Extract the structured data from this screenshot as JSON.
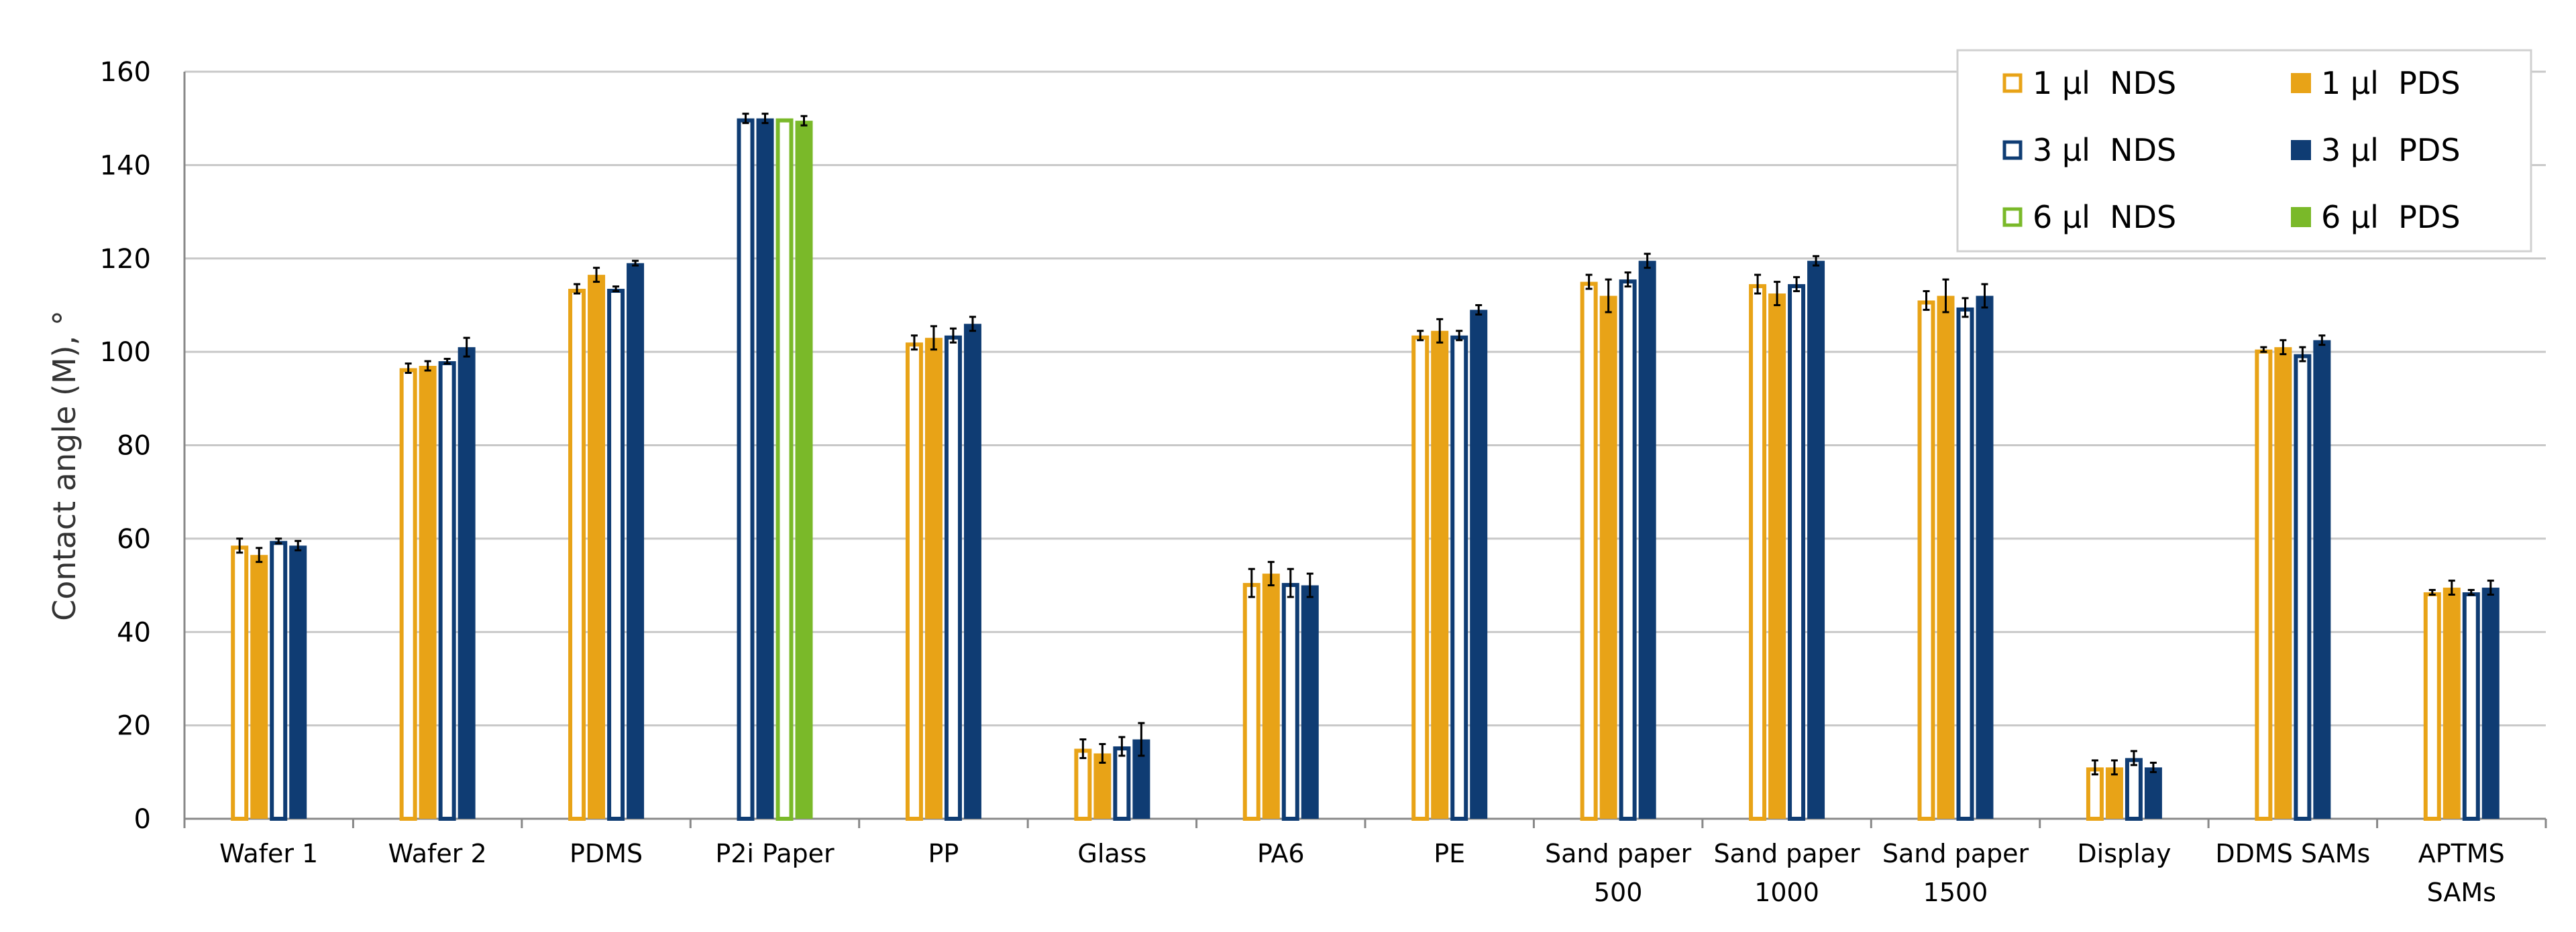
{
  "chart_data": {
    "type": "bar",
    "ylabel": "Contact angle (M), °",
    "xlabel": "",
    "ylim": [
      0,
      160
    ],
    "yticks": [
      "0",
      "20",
      "40",
      "60",
      "80",
      "100",
      "120",
      "140",
      "160"
    ],
    "grid": true,
    "legend_position": "top-right",
    "categories": [
      [
        "Wafer 1"
      ],
      [
        "Wafer 2"
      ],
      [
        "PDMS"
      ],
      [
        "P2i Paper"
      ],
      [
        "PP"
      ],
      [
        "Glass"
      ],
      [
        "PA6"
      ],
      [
        "PE"
      ],
      [
        "Sand paper",
        "500"
      ],
      [
        "Sand paper",
        "1000"
      ],
      [
        "Sand paper",
        "1500"
      ],
      [
        "Display"
      ],
      [
        "DDMS SAMs"
      ],
      [
        "APTMS",
        "SAMs"
      ]
    ],
    "series": [
      {
        "name": "1 µl  NDS",
        "fill": "none",
        "stroke": "#E8A317",
        "values": [
          58.5,
          96.5,
          113.5,
          null,
          102,
          15,
          50.5,
          103.5,
          115,
          114.5,
          111,
          11,
          100.5,
          48.5
        ],
        "errors": [
          1.5,
          1,
          1,
          null,
          1.5,
          2,
          3,
          1,
          1.5,
          2,
          2,
          1.5,
          0.5,
          0.5
        ]
      },
      {
        "name": "1 µl  PDS",
        "fill": "#E8A317",
        "stroke": "#E8A317",
        "values": [
          56.5,
          97,
          116.5,
          null,
          103,
          14,
          52.5,
          104.5,
          112,
          112.5,
          112,
          11,
          101,
          49.5
        ],
        "errors": [
          1.5,
          1,
          1.5,
          null,
          2.5,
          2,
          2.5,
          2.5,
          3.5,
          2.5,
          3.5,
          1.5,
          1.5,
          1.5
        ]
      },
      {
        "name": "3 µl  NDS",
        "fill": "none",
        "stroke": "#0F3C73",
        "values": [
          59.5,
          98,
          113.5,
          150,
          103.5,
          15.5,
          50.5,
          103.5,
          115.5,
          114.5,
          109.5,
          13,
          99.5,
          48.5
        ],
        "errors": [
          0.5,
          0.5,
          0.5,
          1,
          1.5,
          2,
          3,
          1,
          1.5,
          1.5,
          2,
          1.5,
          1.5,
          0.5
        ]
      },
      {
        "name": "3 µl  PDS",
        "fill": "#0F3C73",
        "stroke": "#0F3C73",
        "values": [
          58.5,
          101,
          119,
          150,
          106,
          17,
          50,
          109,
          119.5,
          119.5,
          112,
          11,
          102.5,
          49.5
        ],
        "errors": [
          1,
          2,
          0.5,
          1,
          1.5,
          3.5,
          2.5,
          1,
          1.5,
          1,
          2.5,
          1,
          1,
          1.5
        ]
      },
      {
        "name": "6 µl  NDS",
        "fill": "none",
        "stroke": "#7AB929",
        "values": [
          null,
          null,
          null,
          150,
          null,
          null,
          null,
          null,
          null,
          null,
          null,
          null,
          null,
          null
        ],
        "errors": [
          null,
          null,
          null,
          null,
          1,
          null,
          null,
          null,
          null,
          null,
          null,
          null,
          null,
          null
        ]
      },
      {
        "name": "6 µl  PDS",
        "fill": "#7AB929",
        "stroke": "#7AB929",
        "values": [
          null,
          null,
          null,
          149.5,
          null,
          null,
          null,
          null,
          null,
          null,
          null,
          null,
          null,
          null
        ],
        "errors": [
          null,
          null,
          null,
          1,
          null,
          null,
          null,
          null,
          null,
          null,
          null,
          null,
          null,
          null
        ]
      }
    ],
    "legend_layout": [
      [
        0,
        1
      ],
      [
        2,
        3
      ],
      [
        4,
        5
      ]
    ]
  }
}
